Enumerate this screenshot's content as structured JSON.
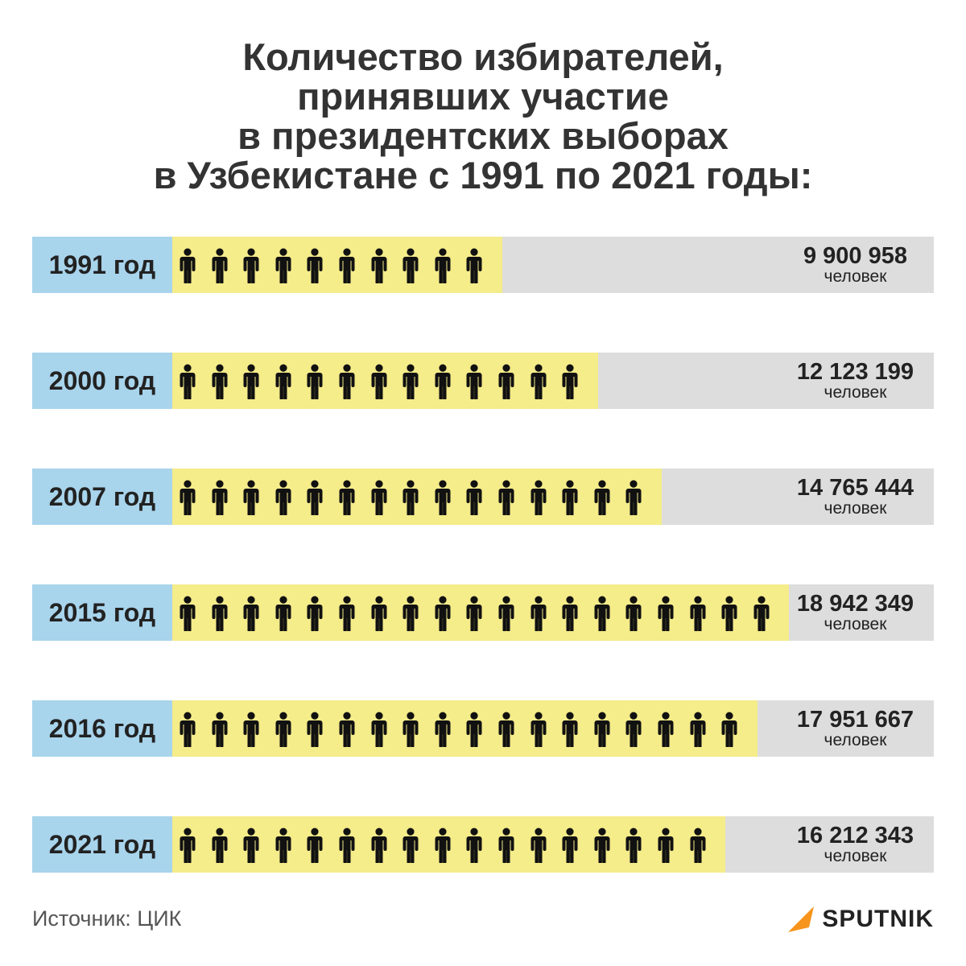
{
  "title_lines": [
    "Количество избирателей,",
    "принявших участие",
    "в президентских выборах",
    "в Узбекистане с 1991 по 2021 годы:"
  ],
  "source": "Источник: ЦИК",
  "brand": "SPUTNIK",
  "unit_label": "человек",
  "colors": {
    "year_bg": "#a8d4ec",
    "bar": "#f5ec8a",
    "track": "#dddddd",
    "icon": "#111111",
    "logo_accent": "#f7941d"
  },
  "chart_data": {
    "type": "bar",
    "orientation": "horizontal",
    "categories": [
      "1991 год",
      "2000 год",
      "2007 год",
      "2015 год",
      "2016 год",
      "2021 год"
    ],
    "values": [
      9900958,
      12123199,
      14765444,
      18942349,
      17951667,
      16212343
    ],
    "value_labels": [
      "9 900 958",
      "12 123 199",
      "14 765 444",
      "18 942 349",
      "17 951 667",
      "16 212 343"
    ],
    "icon_counts": [
      10,
      13,
      15,
      19,
      18,
      17
    ],
    "icon": "person-icon"
  }
}
